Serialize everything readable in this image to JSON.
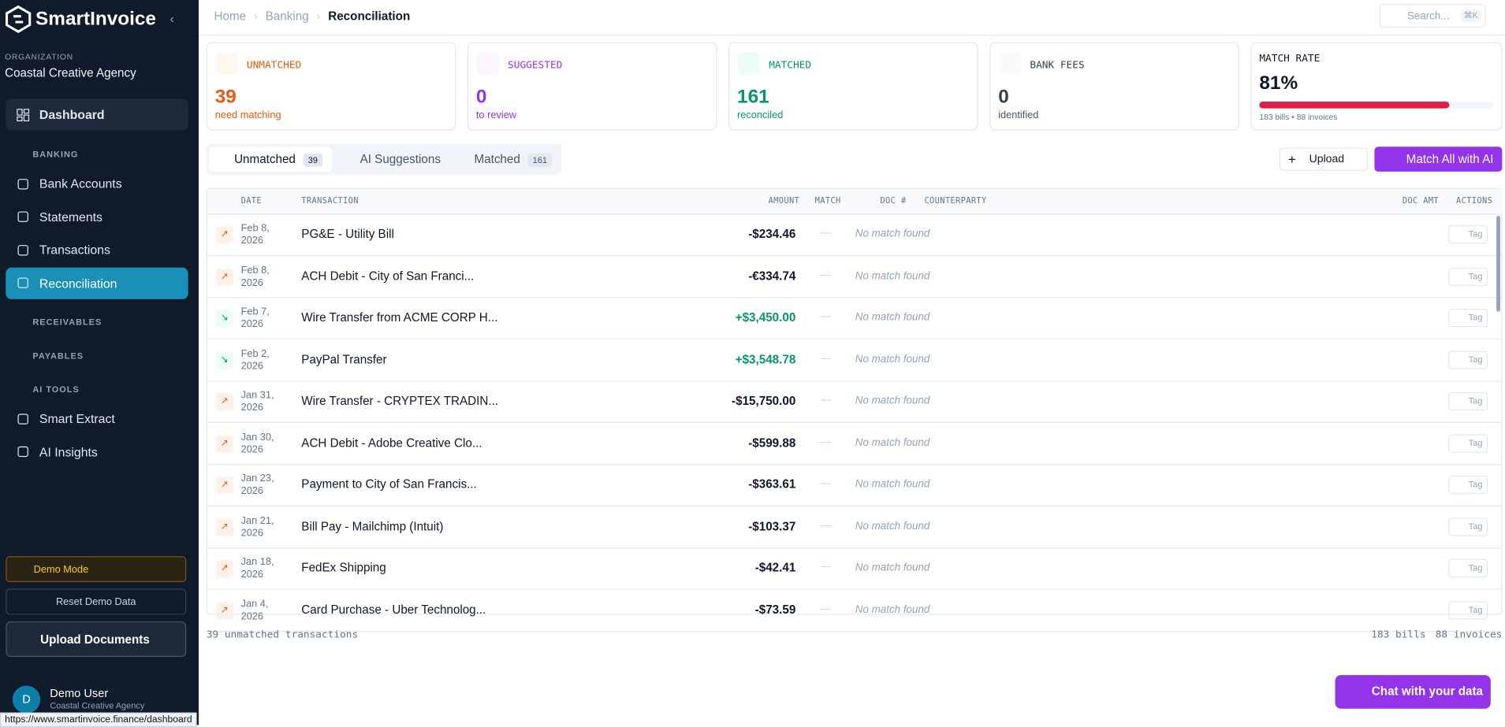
{
  "brand": "SmartInvoice",
  "sidebar": {
    "org_label": "ORGANIZATION",
    "org_name": "Coastal Creative Agency",
    "dashboard": "Dashboard",
    "banking": {
      "title": "BANKING",
      "items": [
        "Bank Accounts",
        "Statements",
        "Transactions",
        "Reconciliation"
      ]
    },
    "receivables": "RECEIVABLES",
    "payables": "PAYABLES",
    "ai_tools": {
      "title": "AI TOOLS",
      "items": [
        "Smart Extract",
        "AI Insights"
      ]
    },
    "demo_mode": "Demo Mode",
    "reset": "Reset Demo Data",
    "upload": "Upload Documents",
    "user": {
      "initial": "D",
      "name": "Demo User",
      "org": "Coastal Creative Agency"
    }
  },
  "breadcrumb": [
    "Home",
    "Banking",
    "Reconciliation"
  ],
  "search": {
    "placeholder": "Search...",
    "shortcut": "⌘K"
  },
  "cards": [
    {
      "label": "UNMATCHED",
      "value": "39",
      "sub": "need matching"
    },
    {
      "label": "SUGGESTED",
      "value": "0",
      "sub": "to review"
    },
    {
      "label": "MATCHED",
      "value": "161",
      "sub": "reconciled"
    },
    {
      "label": "BANK FEES",
      "value": "0",
      "sub": "identified"
    }
  ],
  "match_rate": {
    "label": "MATCH RATE",
    "rate": {
      "value": 81,
      "label": "81%"
    },
    "sub": "183 bills • 88 invoices"
  },
  "tabs": [
    {
      "label": "Unmatched",
      "count": "39"
    },
    {
      "label": "AI Suggestions"
    },
    {
      "label": "Matched",
      "count": "161"
    }
  ],
  "buttons": {
    "upload": "Upload",
    "match_all": "Match All with AI"
  },
  "table": {
    "headers": [
      "DATE",
      "TRANSACTION",
      "AMOUNT",
      "MATCH",
      "DOC #",
      "COUNTERPARTY",
      "DOC AMT",
      "ACTIONS"
    ],
    "rows": [
      {
        "date": "Feb 8, 2026",
        "transaction": "PG&E - Utility Bill",
        "amount": "-$234.46",
        "direction": "out",
        "match": "—",
        "counterparty": "No match found",
        "action": "Tag"
      },
      {
        "date": "Feb 8, 2026",
        "transaction": "ACH Debit - City of San Franci...",
        "amount": "-€334.74",
        "direction": "out",
        "match": "—",
        "counterparty": "No match found",
        "action": "Tag"
      },
      {
        "date": "Feb 7, 2026",
        "transaction": "Wire Transfer from ACME CORP H...",
        "amount": "+$3,450.00",
        "direction": "in",
        "match": "—",
        "counterparty": "No match found",
        "action": "Tag"
      },
      {
        "date": "Feb 2, 2026",
        "transaction": "PayPal Transfer",
        "amount": "+$3,548.78",
        "direction": "in",
        "match": "—",
        "counterparty": "No match found",
        "action": "Tag"
      },
      {
        "date": "Jan 31, 2026",
        "transaction": "Wire Transfer - CRYPTEX TRADIN...",
        "amount": "-$15,750.00",
        "direction": "out",
        "match": "—",
        "counterparty": "No match found",
        "action": "Tag"
      },
      {
        "date": "Jan 30, 2026",
        "transaction": "ACH Debit - Adobe Creative Clo...",
        "amount": "-$599.88",
        "direction": "out",
        "match": "—",
        "counterparty": "No match found",
        "action": "Tag"
      },
      {
        "date": "Jan 23, 2026",
        "transaction": "Payment to City of San Francis...",
        "amount": "-$363.61",
        "direction": "out",
        "match": "—",
        "counterparty": "No match found",
        "action": "Tag"
      },
      {
        "date": "Jan 21, 2026",
        "transaction": "Bill Pay - Mailchimp (Intuit)",
        "amount": "-$103.37",
        "direction": "out",
        "match": "—",
        "counterparty": "No match found",
        "action": "Tag"
      },
      {
        "date": "Jan 18, 2026",
        "transaction": "FedEx Shipping",
        "amount": "-$42.41",
        "direction": "out",
        "match": "—",
        "counterparty": "No match found",
        "action": "Tag"
      },
      {
        "date": "Jan 4, 2026",
        "transaction": "Card Purchase - Uber Technolog...",
        "amount": "-$73.59",
        "direction": "out",
        "match": "—",
        "counterparty": "No match found",
        "action": "Tag"
      }
    ]
  },
  "footer": {
    "left": "39 unmatched transactions",
    "bills": "183 bills",
    "invoices": "88 invoices"
  },
  "chat": "Chat with your data",
  "status_url": "https://www.smartinvoice.finance/dashboard"
}
